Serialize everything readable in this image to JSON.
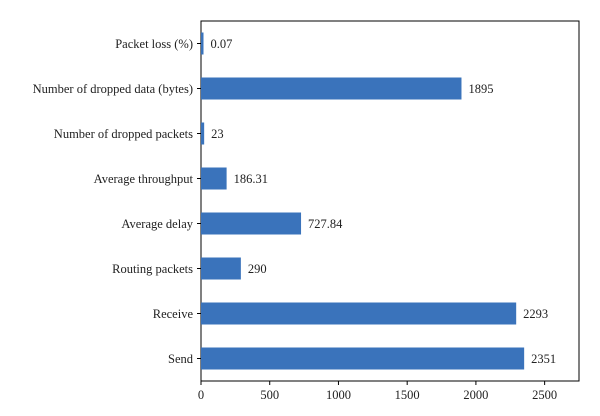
{
  "chart_data": {
    "type": "bar",
    "orientation": "horizontal",
    "categories": [
      "Packet loss (%)",
      "Number of dropped data (bytes)",
      "Number of dropped packets",
      "Average throughput",
      "Average delay",
      "Routing packets",
      "Receive",
      "Send"
    ],
    "values": [
      0.07,
      1895,
      23,
      186.31,
      727.84,
      290,
      2293,
      2351
    ],
    "value_labels": [
      "0.07",
      "1895",
      "23",
      "186.31",
      "727.84",
      "290",
      "2293",
      "2351"
    ],
    "x_ticks": [
      "0",
      "500",
      "1000",
      "1500",
      "2000",
      "2500"
    ],
    "xlim": [
      0,
      2750
    ],
    "bar_color": "#3A73BB",
    "title": "",
    "xlabel": "",
    "ylabel": "",
    "grid": false,
    "legend": "none"
  }
}
